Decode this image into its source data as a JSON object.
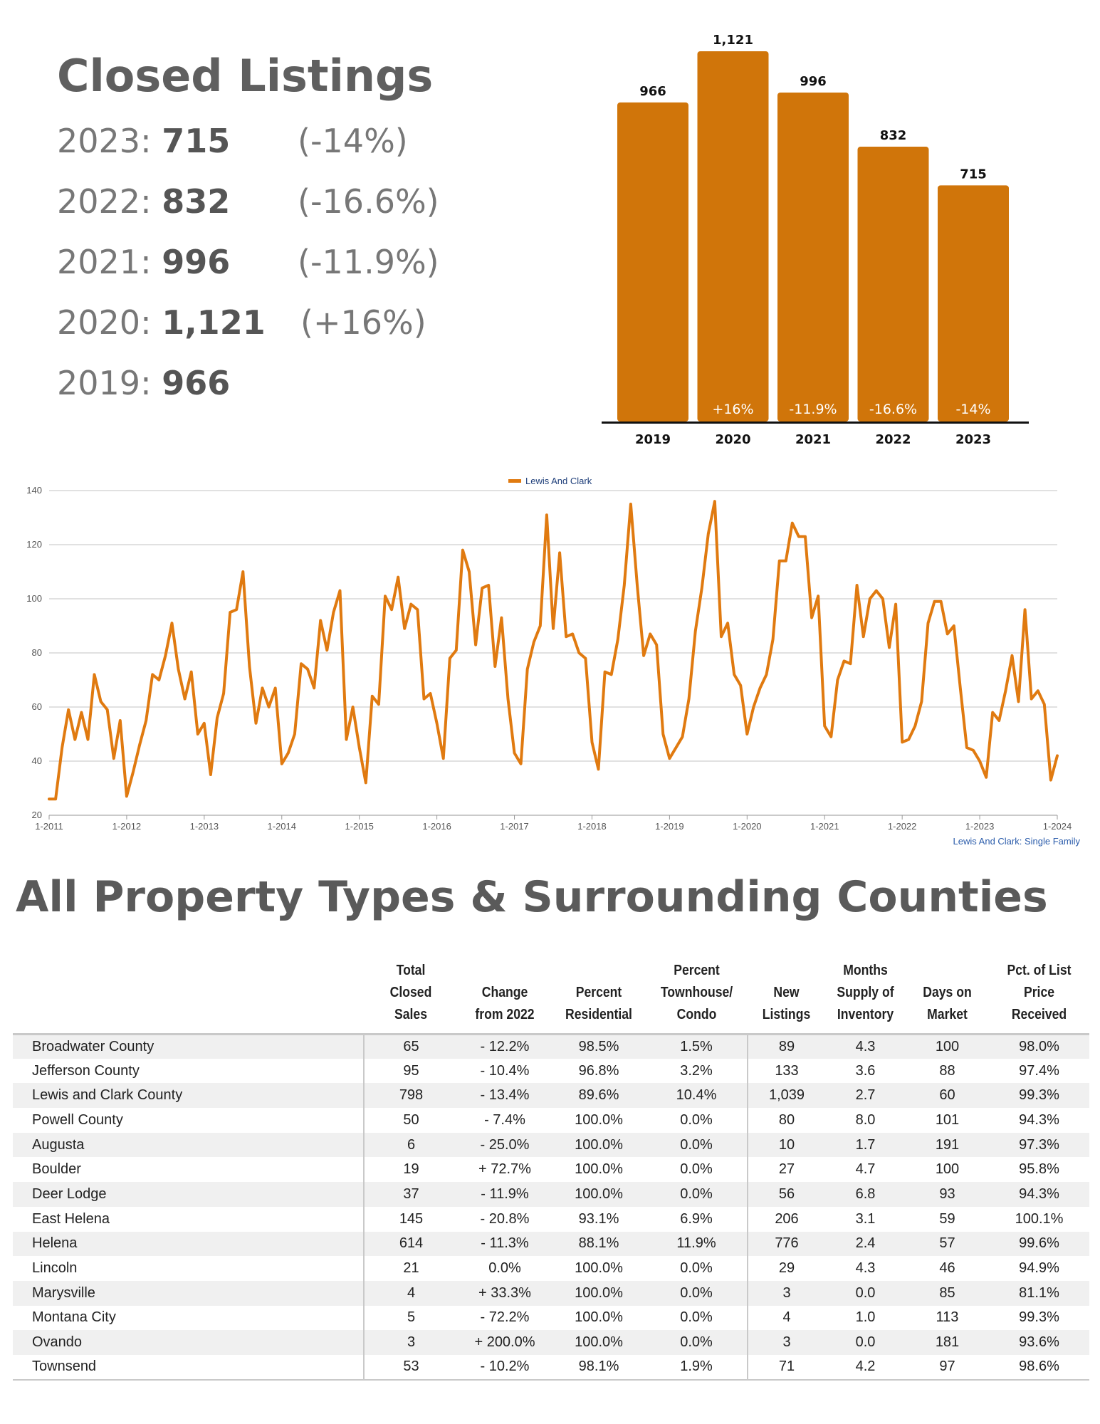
{
  "summary": {
    "title": "Closed Listings",
    "rows": [
      {
        "year": "2023",
        "value": "715",
        "change": "(-14%)"
      },
      {
        "year": "2022",
        "value": "832",
        "change": "(-16.6%)"
      },
      {
        "year": "2021",
        "value": "996",
        "change": "(-11.9%)"
      },
      {
        "year": "2020",
        "value": "1,121",
        "change": "(+16%)"
      },
      {
        "year": "2019",
        "value": "966",
        "change": ""
      }
    ]
  },
  "chart_data": [
    {
      "type": "bar",
      "categories": [
        "2019",
        "2020",
        "2021",
        "2022",
        "2023"
      ],
      "values": [
        966,
        1121,
        996,
        832,
        715
      ],
      "value_labels": [
        "966",
        "1,121",
        "996",
        "832",
        "715"
      ],
      "change_labels": [
        "",
        "+16%",
        "-11.9%",
        "-16.6%",
        "-14%"
      ],
      "color": "#D0750A",
      "ylim": [
        0,
        1121
      ]
    },
    {
      "type": "line",
      "legend": "top-center",
      "series": [
        {
          "name": "Lewis And Clark",
          "color": "#E07A10",
          "start": "1-2011",
          "values": [
            26,
            26,
            45,
            59,
            48,
            58,
            48,
            72,
            62,
            59,
            41,
            55,
            27,
            36,
            46,
            55,
            72,
            70,
            79,
            91,
            74,
            63,
            73,
            50,
            54,
            35,
            56,
            65,
            95,
            96,
            110,
            75,
            54,
            67,
            60,
            67,
            39,
            43,
            50,
            76,
            74,
            67,
            92,
            81,
            95,
            103,
            48,
            60,
            45,
            32,
            64,
            61,
            101,
            96,
            108,
            89,
            98,
            96,
            63,
            65,
            54,
            41,
            78,
            81,
            118,
            110,
            83,
            104,
            105,
            75,
            93,
            63,
            43,
            39,
            74,
            84,
            90,
            131,
            89,
            117,
            86,
            87,
            80,
            78,
            47,
            37,
            73,
            72,
            85,
            105,
            135,
            105,
            79,
            87,
            83,
            50,
            41,
            45,
            49,
            63,
            88,
            104,
            124,
            136,
            86,
            91,
            72,
            68,
            50,
            60,
            67,
            72,
            85,
            114,
            114,
            128,
            123,
            123,
            93,
            101,
            53,
            49,
            70,
            77,
            76,
            105,
            86,
            100,
            103,
            100,
            82,
            98,
            47,
            48,
            53,
            62,
            91,
            99,
            99,
            87,
            90,
            67,
            45,
            44,
            40,
            34,
            58,
            55,
            66,
            79,
            62,
            96,
            63,
            66,
            61,
            33,
            42
          ]
        }
      ],
      "x_ticks": [
        "1-2011",
        "1-2012",
        "1-2013",
        "1-2014",
        "1-2015",
        "1-2016",
        "1-2017",
        "1-2018",
        "1-2019",
        "1-2020",
        "1-2021",
        "1-2022",
        "1-2023",
        "1-2024"
      ],
      "y_ticks": [
        20,
        40,
        60,
        80,
        100,
        120,
        140
      ],
      "ylim": [
        20,
        140
      ],
      "grid": true,
      "caption": "Lewis And Clark: Single Family"
    }
  ],
  "table": {
    "title": "All Property Types & Surrounding Counties",
    "headers": [
      "",
      [
        "Total",
        "Closed Sales"
      ],
      [
        "Change",
        "from 2022"
      ],
      [
        "Percent",
        "Residential"
      ],
      [
        "Percent",
        "Townhouse/",
        "Condo"
      ],
      [
        "New",
        "Listings"
      ],
      [
        "Months",
        "Supply of",
        "Inventory"
      ],
      [
        "Days on",
        "Market"
      ],
      [
        "Pct. of List",
        "Price",
        "Received"
      ]
    ],
    "rows": [
      [
        "Broadwater County",
        "65",
        "- 12.2%",
        "98.5%",
        "1.5%",
        "89",
        "4.3",
        "100",
        "98.0%"
      ],
      [
        "Jefferson County",
        "95",
        "- 10.4%",
        "96.8%",
        "3.2%",
        "133",
        "3.6",
        "88",
        "97.4%"
      ],
      [
        "Lewis and Clark County",
        "798",
        "- 13.4%",
        "89.6%",
        "10.4%",
        "1,039",
        "2.7",
        "60",
        "99.3%"
      ],
      [
        "Powell County",
        "50",
        "- 7.4%",
        "100.0%",
        "0.0%",
        "80",
        "8.0",
        "101",
        "94.3%"
      ],
      [
        "Augusta",
        "6",
        "- 25.0%",
        "100.0%",
        "0.0%",
        "10",
        "1.7",
        "191",
        "97.3%"
      ],
      [
        "Boulder",
        "19",
        "+ 72.7%",
        "100.0%",
        "0.0%",
        "27",
        "4.7",
        "100",
        "95.8%"
      ],
      [
        "Deer Lodge",
        "37",
        "- 11.9%",
        "100.0%",
        "0.0%",
        "56",
        "6.8",
        "93",
        "94.3%"
      ],
      [
        "East Helena",
        "145",
        "- 20.8%",
        "93.1%",
        "6.9%",
        "206",
        "3.1",
        "59",
        "100.1%"
      ],
      [
        "Helena",
        "614",
        "- 11.3%",
        "88.1%",
        "11.9%",
        "776",
        "2.4",
        "57",
        "99.6%"
      ],
      [
        "Lincoln",
        "21",
        "0.0%",
        "100.0%",
        "0.0%",
        "29",
        "4.3",
        "46",
        "94.9%"
      ],
      [
        "Marysville",
        "4",
        "+ 33.3%",
        "100.0%",
        "0.0%",
        "3",
        "0.0",
        "85",
        "81.1%"
      ],
      [
        "Montana City",
        "5",
        "- 72.2%",
        "100.0%",
        "0.0%",
        "4",
        "1.0",
        "113",
        "99.3%"
      ],
      [
        "Ovando",
        "3",
        "+ 200.0%",
        "100.0%",
        "0.0%",
        "3",
        "0.0",
        "181",
        "93.6%"
      ],
      [
        "Townsend",
        "53",
        "- 10.2%",
        "98.1%",
        "1.9%",
        "71",
        "4.2",
        "97",
        "98.6%"
      ]
    ]
  }
}
